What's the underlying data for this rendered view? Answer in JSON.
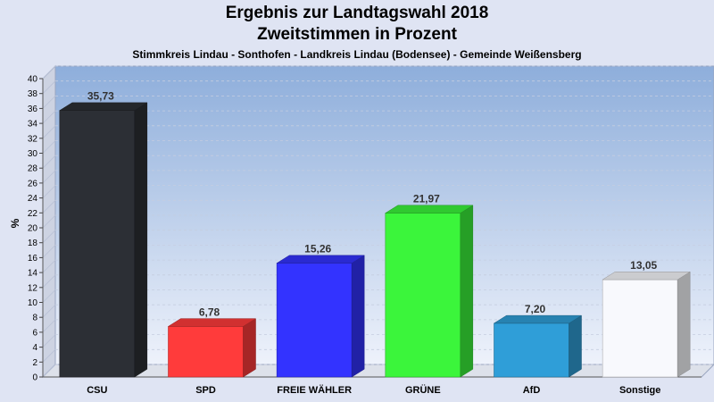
{
  "chart_data": {
    "type": "bar",
    "title": "Ergebnis zur Landtagswahl 2018",
    "subtitle": "Zweitstimmen in Prozent",
    "caption": "Stimmkreis Lindau - Sonthofen - Landkreis Lindau (Bodensee) - Gemeinde Weißensberg",
    "ylabel": "%",
    "ylim": [
      0,
      40
    ],
    "ytick_step": 2,
    "grid": true,
    "categories": [
      "CSU",
      "SPD",
      "FREIE WÄHLER",
      "GRÜNE",
      "AfD",
      "Sonstige"
    ],
    "values": [
      35.73,
      6.78,
      15.26,
      21.97,
      7.2,
      13.05
    ],
    "value_labels": [
      "35,73",
      "6,78",
      "15,26",
      "21,97",
      "7,20",
      "13,05"
    ],
    "colors": [
      "#2c2f35",
      "#ff3b3b",
      "#3333ff",
      "#3bf53b",
      "#2f9ed8",
      "#f8f9fd"
    ]
  }
}
